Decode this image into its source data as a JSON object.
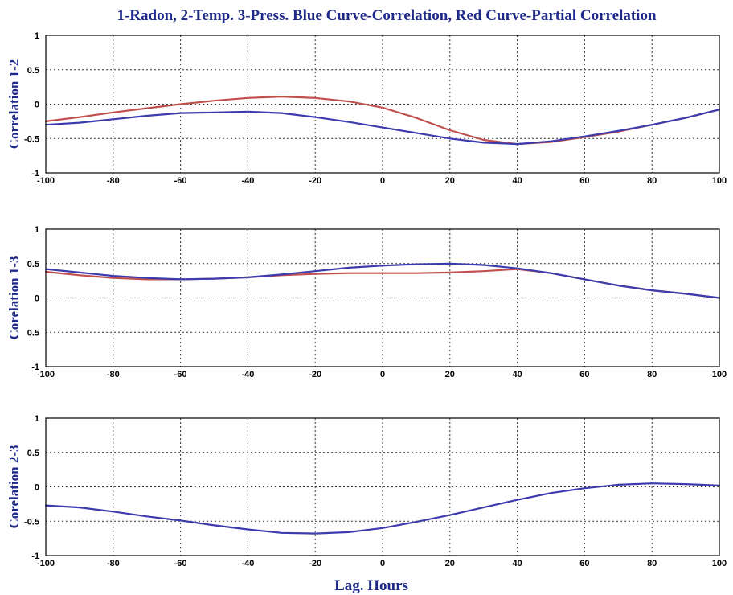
{
  "figure": {
    "title": "1-Radon, 2-Temp. 3-Press. Blue Curve-Correlation, Red Curve-Partial Correlation",
    "xlabel": "Lag. Hours"
  },
  "colors": {
    "blue": "#3c3cae",
    "red": "#c0504d",
    "text": "#1f2a8a"
  },
  "chart_data": [
    {
      "type": "line",
      "ylabel": "Correlation 1-2",
      "xlim": [
        -100,
        100
      ],
      "ylim": [
        -1,
        1
      ],
      "xticks": [
        "-100",
        "-80",
        "-60",
        "-40",
        "-20",
        "0",
        "20",
        "40",
        "60",
        "80",
        "100"
      ],
      "yticks": [
        "1",
        "0.5",
        "0",
        "-0.5",
        "-1"
      ],
      "grid": true,
      "x": [
        -100,
        -90,
        -80,
        -70,
        -60,
        -50,
        -40,
        -30,
        -20,
        -10,
        0,
        10,
        20,
        30,
        40,
        50,
        60,
        70,
        80,
        90,
        100
      ],
      "series": [
        {
          "color": "red",
          "values": [
            -0.25,
            -0.19,
            -0.12,
            -0.06,
            0.0,
            0.05,
            0.09,
            0.11,
            0.09,
            0.04,
            -0.05,
            -0.2,
            -0.38,
            -0.52,
            -0.58,
            -0.55,
            -0.48,
            -0.4,
            -0.3,
            -0.2,
            -0.08
          ]
        },
        {
          "color": "blue",
          "values": [
            -0.3,
            -0.27,
            -0.22,
            -0.17,
            -0.13,
            -0.12,
            -0.11,
            -0.13,
            -0.19,
            -0.26,
            -0.34,
            -0.42,
            -0.5,
            -0.56,
            -0.58,
            -0.54,
            -0.47,
            -0.39,
            -0.3,
            -0.2,
            -0.08
          ]
        }
      ]
    },
    {
      "type": "line",
      "ylabel": "Corelation 1-3",
      "xlim": [
        -100,
        100
      ],
      "ylim": [
        -1,
        1
      ],
      "xticks": [
        "-100",
        "-80",
        "-60",
        "-40",
        "-20",
        "0",
        "20",
        "40",
        "60",
        "80",
        "100"
      ],
      "yticks": [
        "1",
        "0.5",
        "0",
        "0.5",
        "-1"
      ],
      "grid": true,
      "x": [
        -100,
        -90,
        -80,
        -70,
        -60,
        -50,
        -40,
        -30,
        -20,
        -10,
        0,
        10,
        20,
        30,
        40,
        50,
        60,
        70,
        80,
        90,
        100
      ],
      "series": [
        {
          "color": "red",
          "values": [
            0.38,
            0.33,
            0.29,
            0.27,
            0.27,
            0.28,
            0.3,
            0.33,
            0.35,
            0.36,
            0.36,
            0.36,
            0.37,
            0.39,
            0.42,
            0.36,
            0.27,
            0.18,
            0.11,
            0.06,
            0.0
          ]
        },
        {
          "color": "blue",
          "values": [
            0.42,
            0.37,
            0.32,
            0.29,
            0.27,
            0.28,
            0.3,
            0.34,
            0.39,
            0.44,
            0.47,
            0.49,
            0.5,
            0.48,
            0.43,
            0.36,
            0.27,
            0.18,
            0.11,
            0.06,
            0.0
          ]
        }
      ]
    },
    {
      "type": "line",
      "ylabel": "Corelation 2-3",
      "xlim": [
        -100,
        100
      ],
      "ylim": [
        -1,
        1
      ],
      "xticks": [
        "-100",
        "-80",
        "-60",
        "-40",
        "-20",
        "0",
        "20",
        "40",
        "60",
        "80",
        "100"
      ],
      "yticks": [
        "1",
        "0.5",
        "0",
        "-0.5",
        "-1"
      ],
      "grid": true,
      "x": [
        -100,
        -90,
        -80,
        -70,
        -60,
        -50,
        -40,
        -30,
        -20,
        -10,
        0,
        10,
        20,
        30,
        40,
        50,
        60,
        70,
        80,
        90,
        100
      ],
      "series": [
        {
          "color": "blue",
          "values": [
            -0.27,
            -0.3,
            -0.36,
            -0.43,
            -0.49,
            -0.56,
            -0.62,
            -0.67,
            -0.68,
            -0.66,
            -0.6,
            -0.51,
            -0.41,
            -0.3,
            -0.19,
            -0.09,
            -0.02,
            0.03,
            0.05,
            0.04,
            0.02
          ]
        }
      ]
    }
  ]
}
